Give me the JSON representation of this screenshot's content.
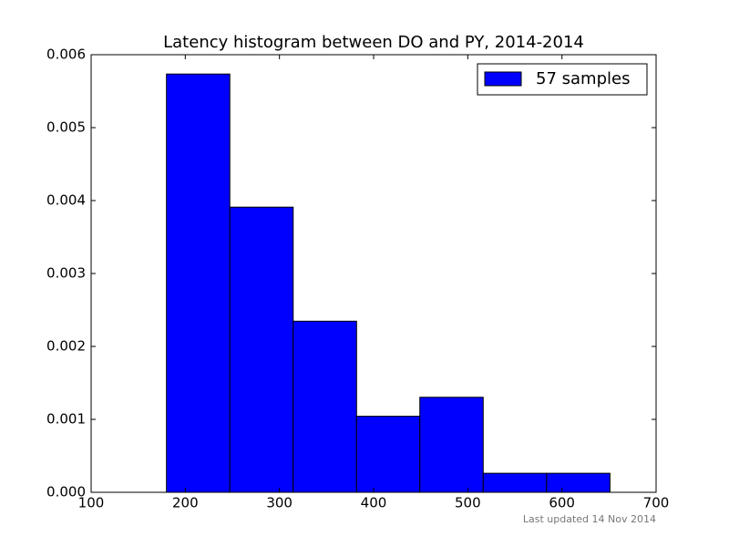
{
  "chart_data": {
    "type": "histogram",
    "title": "Latency histogram between DO and PY, 2014-2014",
    "bins": [
      180,
      247.3,
      314.6,
      381.9,
      449.1,
      516.4,
      583.7,
      651
    ],
    "series": [
      {
        "name": "57 samples",
        "color": "#0000ff",
        "values": [
          0.005735,
          0.00391,
          0.002346,
          0.001043,
          0.001303,
          0.000261,
          0.000261
        ]
      }
    ],
    "xlim": [
      100,
      700
    ],
    "xticks": [
      100,
      200,
      300,
      400,
      500,
      600,
      700
    ],
    "ylim": [
      0,
      0.006
    ],
    "yticks": [
      {
        "value": 0,
        "label": "0.000"
      },
      {
        "value": 0.001,
        "label": "0.001"
      },
      {
        "value": 0.002,
        "label": "0.002"
      },
      {
        "value": 0.003,
        "label": "0.003"
      },
      {
        "value": 0.004,
        "label": "0.004"
      },
      {
        "value": 0.005,
        "label": "0.005"
      },
      {
        "value": 0.006,
        "label": "0.006"
      }
    ],
    "legend": "upper right",
    "grid": false,
    "footnote": "Last updated 14 Nov 2014"
  }
}
